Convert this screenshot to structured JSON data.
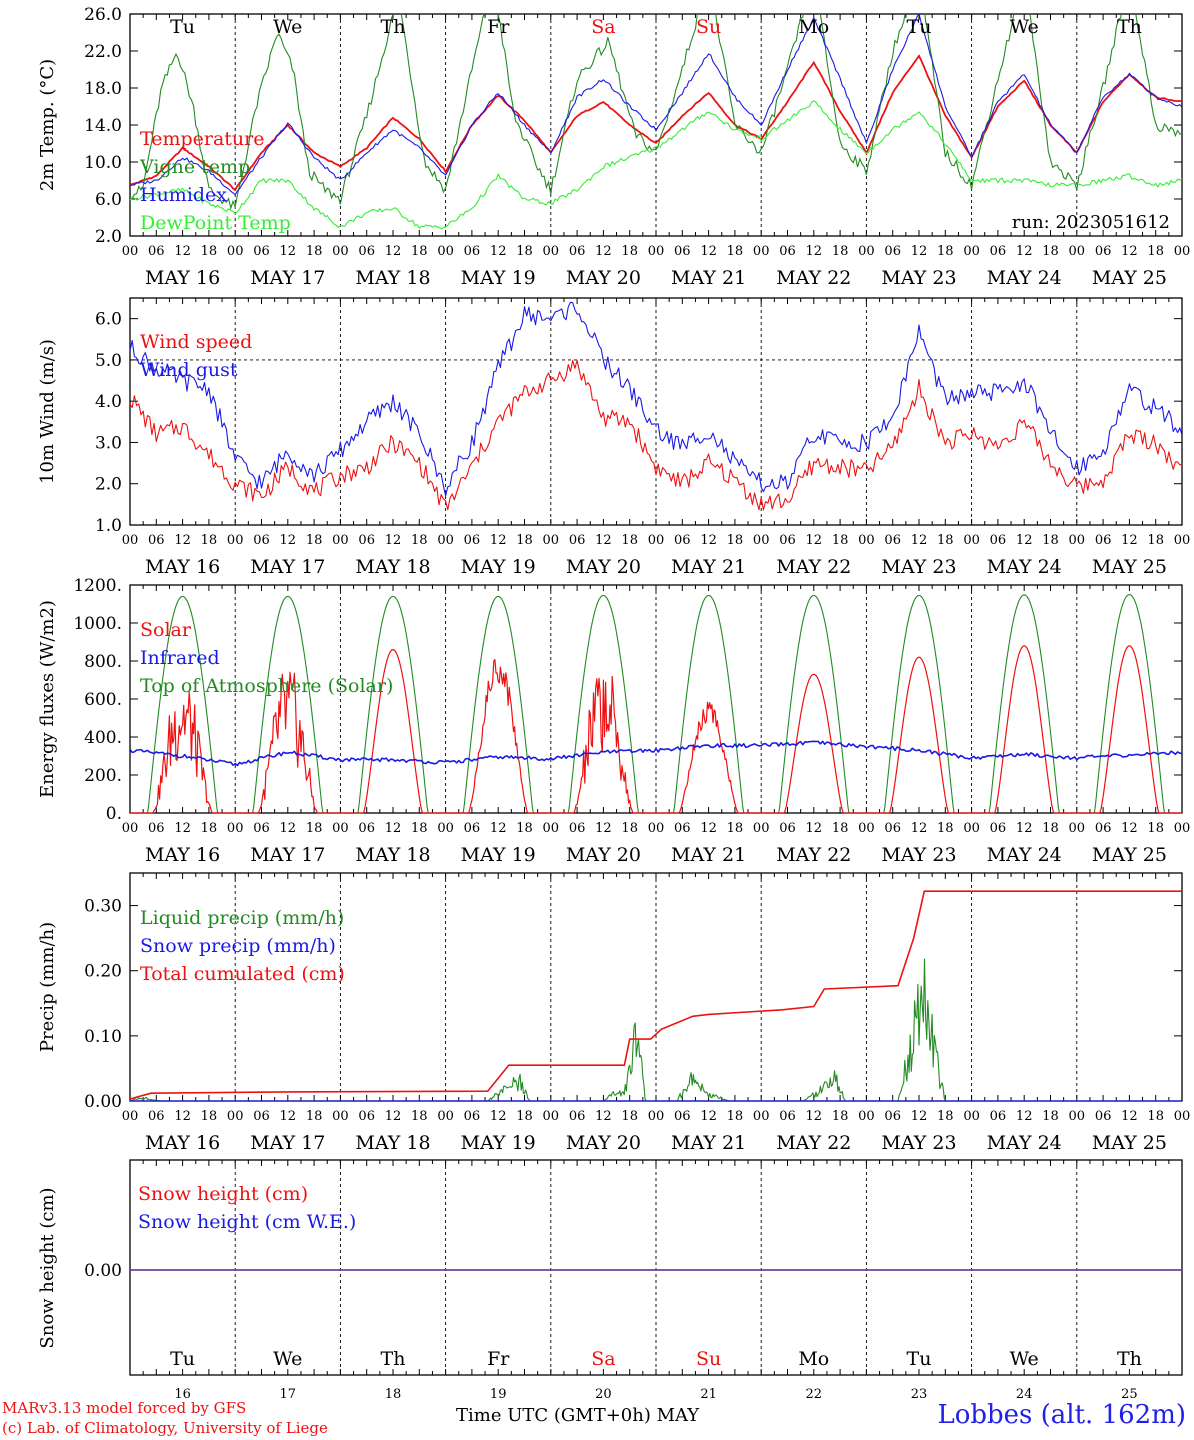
{
  "run_label": "run: 2023051612",
  "footer": {
    "model": "MARv3.13 model forced by GFS",
    "copyright": "(c) Lab. of Climatology, University of Liege",
    "xlabel": "Time UTC (GMT+0h) MAY",
    "station": "Lobbes (alt. 162m)"
  },
  "colors": {
    "red": "#ee1111",
    "green": "#228B22",
    "blue": "#1a1ae6",
    "lightgreen": "#33ee33",
    "purple": "#7a3c9a"
  },
  "day_labels": [
    "Tu",
    "We",
    "Th",
    "Fr",
    "Sa",
    "Su",
    "Mo",
    "Tu",
    "We",
    "Th"
  ],
  "weekend_days": [
    4,
    5
  ],
  "date_labels": [
    "MAY 16",
    "MAY 17",
    "MAY 18",
    "MAY 19",
    "MAY 20",
    "MAY 21",
    "MAY 22",
    "MAY 23",
    "MAY 24",
    "MAY 25"
  ],
  "day_numbers": [
    "16",
    "17",
    "18",
    "19",
    "20",
    "21",
    "22",
    "23",
    "24",
    "25"
  ],
  "hour_ticks": [
    "00",
    "06",
    "12",
    "18"
  ],
  "hour_end_tick": "00",
  "chart_data": [
    {
      "type": "line",
      "ylabel": "2m Temp. (°C)",
      "ylim": [
        2.0,
        26.0
      ],
      "yticks": [
        "2.0",
        "6.0",
        "10.0",
        "14.0",
        "18.0",
        "22.0",
        "26.0"
      ],
      "x_units": "days since 2023-05-16 00 UTC",
      "series": [
        {
          "name": "Temperature",
          "color": "red",
          "x": [
            0,
            0.25,
            0.5,
            0.75,
            1,
            1.25,
            1.5,
            1.75,
            2,
            2.25,
            2.5,
            2.75,
            3,
            3.25,
            3.5,
            3.75,
            4,
            4.25,
            4.5,
            4.75,
            5,
            5.25,
            5.5,
            5.75,
            6,
            6.25,
            6.5,
            6.75,
            7,
            7.25,
            7.5,
            7.75,
            8,
            8.25,
            8.5,
            8.75,
            9,
            9.25,
            9.5,
            9.75,
            10
          ],
          "y": [
            7.5,
            8.5,
            11.5,
            9.5,
            7.0,
            11.0,
            14.0,
            11.0,
            9.5,
            11.5,
            14.8,
            12.5,
            9.0,
            14.0,
            17.2,
            14.5,
            11.0,
            15.0,
            16.5,
            14.0,
            12.0,
            15.0,
            17.5,
            14.0,
            12.5,
            16.5,
            20.8,
            15.5,
            11.0,
            17.5,
            21.5,
            15.0,
            10.5,
            16.0,
            18.8,
            14.0,
            11.0,
            16.5,
            19.5,
            17.0,
            16.5
          ]
        },
        {
          "name": "Vigne temp",
          "color": "green",
          "x": [
            0,
            0.12,
            0.3,
            0.45,
            0.6,
            0.75,
            1,
            1.2,
            1.4,
            1.55,
            1.7,
            1.85,
            2,
            2.25,
            2.55,
            2.8,
            3,
            3.25,
            3.45,
            3.65,
            3.85,
            4,
            4.25,
            4.55,
            4.8,
            5,
            5.25,
            5.5,
            5.75,
            6,
            6.25,
            6.5,
            6.75,
            7,
            7.25,
            7.5,
            7.75,
            8,
            8.25,
            8.5,
            8.75,
            9,
            9.25,
            9.5,
            9.75,
            10
          ],
          "y": [
            6.5,
            7.0,
            18.0,
            22.0,
            16.0,
            7.0,
            5.0,
            16.0,
            24.0,
            20.0,
            9.0,
            7.0,
            6.0,
            15.0,
            28.0,
            10.0,
            7.0,
            20.0,
            30.0,
            15.0,
            10.0,
            7.0,
            19.0,
            23.0,
            13.0,
            11.0,
            20.0,
            30.0,
            14.0,
            11.0,
            20.0,
            30.0,
            12.0,
            9.0,
            22.0,
            30.0,
            11.0,
            7.5,
            19.0,
            30.0,
            10.0,
            7.5,
            18.0,
            30.0,
            14.0,
            13.0
          ]
        },
        {
          "name": "Humidex",
          "color": "blue",
          "x": [
            0,
            0.25,
            0.5,
            0.75,
            1,
            1.25,
            1.5,
            1.75,
            2,
            2.25,
            2.5,
            2.75,
            3,
            3.25,
            3.5,
            3.75,
            4,
            4.25,
            4.5,
            4.75,
            5,
            5.25,
            5.5,
            5.75,
            6,
            6.25,
            6.5,
            6.75,
            7,
            7.25,
            7.5,
            7.75,
            8,
            8.25,
            8.5,
            8.75,
            9,
            9.25,
            9.5,
            9.75,
            10
          ],
          "y": [
            7.5,
            8.0,
            10.5,
            9.0,
            6.5,
            10.5,
            14.2,
            10.5,
            8.0,
            11.0,
            13.5,
            11.5,
            8.5,
            14.0,
            17.5,
            14.0,
            11.0,
            17.0,
            19.0,
            16.0,
            13.5,
            17.5,
            21.8,
            17.0,
            14.0,
            20.0,
            25.5,
            19.0,
            12.0,
            20.0,
            26.0,
            16.0,
            10.5,
            16.5,
            19.5,
            14.0,
            11.0,
            17.0,
            19.5,
            17.0,
            16.0
          ]
        },
        {
          "name": "DewPoint Temp",
          "color": "lightgreen",
          "x": [
            0,
            0.25,
            0.5,
            0.75,
            1,
            1.25,
            1.5,
            1.75,
            2,
            2.25,
            2.5,
            2.75,
            3,
            3.25,
            3.5,
            3.75,
            4,
            4.25,
            4.5,
            4.75,
            5,
            5.25,
            5.5,
            5.75,
            6,
            6.25,
            6.5,
            6.75,
            7,
            7.25,
            7.5,
            7.75,
            8,
            8.25,
            8.5,
            8.75,
            9,
            9.25,
            9.5,
            9.75,
            10
          ],
          "y": [
            6.0,
            6.5,
            7.0,
            5.5,
            4.5,
            8.0,
            8.0,
            5.0,
            3.0,
            4.5,
            5.0,
            3.0,
            3.0,
            5.0,
            8.5,
            6.0,
            5.5,
            7.0,
            9.5,
            10.5,
            11.5,
            13.5,
            15.5,
            13.5,
            12.5,
            14.5,
            16.5,
            13.5,
            11.0,
            13.5,
            15.5,
            12.0,
            8.0,
            8.0,
            8.0,
            7.5,
            7.5,
            8.0,
            8.5,
            7.5,
            8.0
          ]
        }
      ]
    },
    {
      "type": "line",
      "ylabel": "10m Wind (m/s)",
      "ylim": [
        1.0,
        6.5
      ],
      "yticks": [
        "1.0",
        "2.0",
        "3.0",
        "4.0",
        "5.0",
        "6.0"
      ],
      "ref_line": 5.0,
      "series": [
        {
          "name": "Wind speed",
          "color": "red",
          "x": [
            0,
            0.25,
            0.5,
            0.75,
            1,
            1.25,
            1.5,
            1.75,
            2,
            2.25,
            2.5,
            2.75,
            3,
            3.25,
            3.5,
            3.75,
            4,
            4.25,
            4.5,
            4.75,
            5,
            5.25,
            5.5,
            5.75,
            6,
            6.25,
            6.5,
            6.75,
            7,
            7.25,
            7.5,
            7.75,
            8,
            8.25,
            8.5,
            8.75,
            9,
            9.25,
            9.5,
            9.75,
            10
          ],
          "y": [
            4.1,
            3.2,
            3.4,
            2.7,
            2.0,
            1.7,
            2.4,
            1.8,
            2.2,
            2.4,
            3.0,
            2.5,
            1.4,
            2.4,
            3.5,
            4.2,
            4.5,
            4.9,
            3.6,
            3.5,
            2.4,
            2.0,
            2.5,
            2.1,
            1.5,
            1.6,
            2.5,
            2.4,
            2.3,
            2.9,
            4.3,
            3.0,
            3.2,
            2.9,
            3.5,
            2.5,
            1.9,
            2.1,
            3.2,
            3.0,
            2.3
          ]
        },
        {
          "name": "Wind gust",
          "color": "blue",
          "x": [
            0,
            0.25,
            0.5,
            0.75,
            1,
            1.25,
            1.5,
            1.75,
            2,
            2.25,
            2.5,
            2.75,
            3,
            3.25,
            3.5,
            3.75,
            4,
            4.25,
            4.5,
            4.75,
            5,
            5.25,
            5.5,
            5.75,
            6,
            6.25,
            6.5,
            6.75,
            7,
            7.25,
            7.5,
            7.75,
            8,
            8.25,
            8.5,
            8.75,
            9,
            9.25,
            9.5,
            9.75,
            10
          ],
          "y": [
            5.3,
            4.8,
            4.5,
            4.3,
            2.6,
            2.0,
            2.8,
            2.2,
            2.8,
            3.5,
            4.0,
            3.2,
            1.9,
            3.0,
            4.8,
            6.1,
            6.0,
            6.3,
            5.0,
            4.3,
            3.3,
            2.9,
            3.3,
            2.5,
            2.0,
            2.0,
            3.2,
            3.0,
            3.0,
            3.6,
            5.7,
            4.0,
            4.2,
            4.2,
            4.5,
            3.2,
            2.4,
            2.8,
            4.3,
            3.8,
            3.3
          ]
        }
      ]
    },
    {
      "type": "line",
      "ylabel": "Energy fluxes (W/m2)",
      "ylim": [
        0,
        1200
      ],
      "yticks": [
        "0.",
        "200.",
        "400.",
        "600.",
        "800.",
        "1000.",
        "1200."
      ],
      "series": [
        {
          "name": "Solar",
          "color": "red",
          "day_peaks": [
            760,
            800,
            860,
            850,
            840,
            590,
            730,
            820,
            880,
            880
          ]
        },
        {
          "name": "Infrared",
          "color": "blue",
          "x": [
            0,
            0.5,
            1,
            1.5,
            2,
            2.5,
            3,
            3.5,
            4,
            4.5,
            5,
            5.5,
            6,
            6.5,
            7,
            7.5,
            8,
            8.5,
            9,
            9.5,
            10
          ],
          "y": [
            330,
            300,
            255,
            320,
            280,
            280,
            265,
            295,
            285,
            320,
            330,
            355,
            355,
            370,
            350,
            330,
            290,
            310,
            290,
            305,
            320
          ]
        },
        {
          "name": "Top of Atmosphere (Solar)",
          "color": "green",
          "day_peaks": [
            1140,
            1140,
            1140,
            1140,
            1145,
            1145,
            1145,
            1145,
            1148,
            1150
          ]
        }
      ]
    },
    {
      "type": "line",
      "ylabel": "Precip (mm/h)",
      "ylim": [
        0,
        0.35
      ],
      "yticks": [
        "0.00",
        "0.10",
        "0.20",
        "0.30"
      ],
      "series": [
        {
          "name": "Liquid precip (mm/h)",
          "color": "green",
          "x": [
            0,
            0.1,
            0.2,
            0.3,
            3.4,
            3.5,
            3.6,
            3.7,
            3.8,
            4.5,
            4.6,
            4.7,
            4.8,
            4.85,
            4.9,
            5.2,
            5.35,
            5.5,
            5.7,
            6.4,
            6.6,
            6.7,
            6.8,
            7.3,
            7.45,
            7.55,
            7.65,
            7.75,
            10
          ],
          "y": [
            0,
            0.006,
            0.002,
            0,
            0,
            0.012,
            0.02,
            0.03,
            0,
            0,
            0.012,
            0.01,
            0.1,
            0.06,
            0,
            0,
            0.04,
            0.01,
            0,
            0,
            0.02,
            0.035,
            0,
            0,
            0.1,
            0.15,
            0.07,
            0,
            0
          ]
        },
        {
          "name": "Snow precip (mm/h)",
          "color": "blue",
          "x": [
            0,
            10
          ],
          "y": [
            0,
            0
          ]
        },
        {
          "name": "Total cumulated (cm)",
          "color": "red",
          "x": [
            0,
            0.2,
            1.5,
            3.4,
            3.6,
            4.7,
            4.75,
            4.95,
            5.05,
            5.35,
            5.5,
            6.2,
            6.5,
            6.6,
            7.3,
            7.45,
            7.55,
            10
          ],
          "y": [
            0.003,
            0.012,
            0.014,
            0.015,
            0.055,
            0.055,
            0.095,
            0.095,
            0.11,
            0.13,
            0.133,
            0.14,
            0.145,
            0.172,
            0.177,
            0.25,
            0.322,
            0.322
          ]
        }
      ]
    },
    {
      "type": "line",
      "ylabel": "Snow height (cm)",
      "ylim": [
        -1,
        1
      ],
      "yticks": [
        "0.00"
      ],
      "series": [
        {
          "name": "Snow height (cm)",
          "color": "red",
          "x": [
            0,
            10
          ],
          "y": [
            0,
            0
          ]
        },
        {
          "name": "Snow height (cm W.E.)",
          "color": "blue",
          "x": [
            0,
            10
          ],
          "y": [
            0,
            0
          ]
        }
      ]
    }
  ]
}
